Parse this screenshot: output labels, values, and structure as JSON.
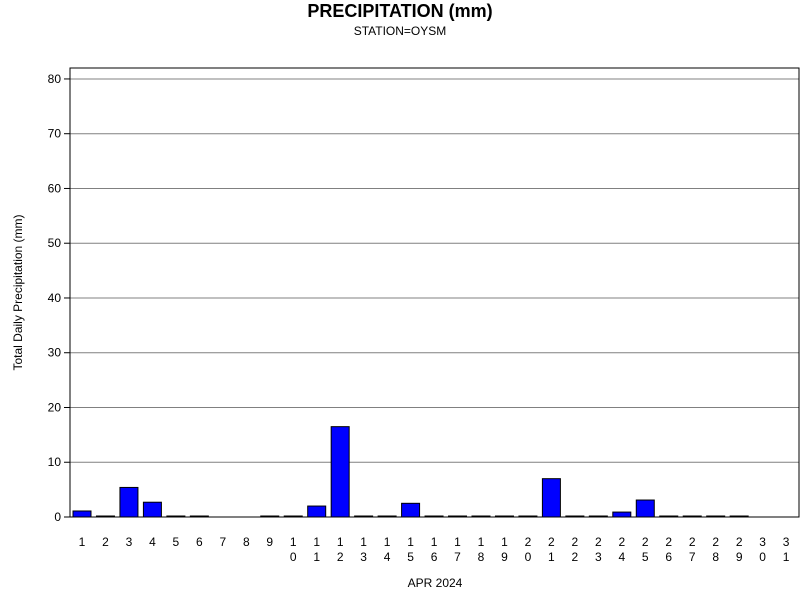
{
  "header": {
    "title": "PRECIPITATION (mm)",
    "subtitle": "STATION=OYSM"
  },
  "colors": {
    "bar_fill": "#0000ff",
    "bar_stroke": "#000000",
    "grid": "#808080",
    "frame": "#000000"
  },
  "chart_data": {
    "type": "bar",
    "title": "PRECIPITATION (mm)",
    "subtitle": "STATION=OYSM",
    "xlabel": "APR 2024",
    "ylabel": "Total Daily Precipitation (mm)",
    "ylim": [
      0,
      82
    ],
    "yticks": [
      0,
      10,
      20,
      30,
      40,
      50,
      60,
      70,
      80
    ],
    "grid": true,
    "categories": [
      "1",
      "2",
      "3",
      "4",
      "5",
      "6",
      "7",
      "8",
      "9",
      "10",
      "11",
      "12",
      "13",
      "14",
      "15",
      "16",
      "17",
      "18",
      "19",
      "20",
      "21",
      "22",
      "23",
      "24",
      "25",
      "26",
      "27",
      "28",
      "29",
      "30",
      "31"
    ],
    "values": [
      1.1,
      0.1,
      5.4,
      2.7,
      0.1,
      0.1,
      null,
      null,
      0.1,
      0.1,
      2.0,
      16.5,
      0.1,
      0.1,
      2.5,
      0.1,
      0.1,
      0.1,
      0.1,
      0.1,
      7.0,
      0.1,
      0.1,
      0.9,
      3.1,
      0.1,
      0.1,
      0.1,
      0.1,
      null,
      null
    ]
  }
}
